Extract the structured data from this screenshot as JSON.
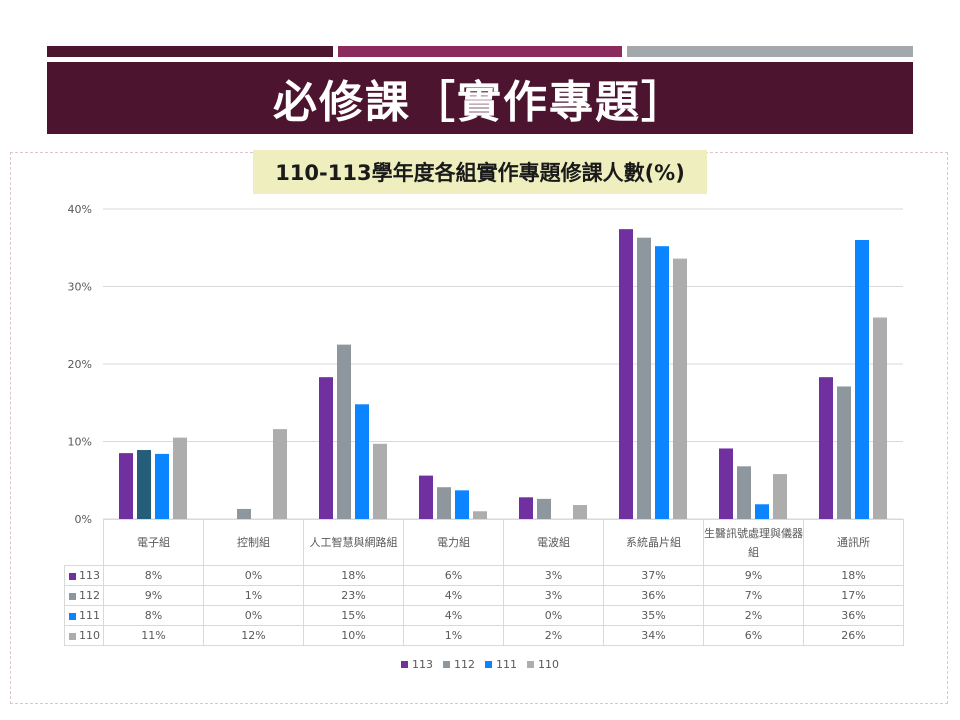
{
  "slide": {
    "title": "必修課［實作專題］",
    "accent_colors": [
      "#4d1430",
      "#8b2a5c",
      "#a3a8ad"
    ]
  },
  "chart_data": {
    "type": "bar",
    "title": "110-113學年度各組實作專題修課人數(%)",
    "categories": [
      "電子組",
      "控制組",
      "人工智慧與網路組",
      "電力組",
      "電波組",
      "系統晶片組",
      "生醫訊號處理與儀器組",
      "通訊所"
    ],
    "series": [
      {
        "name": "113",
        "color": "#7030a0",
        "values": [
          8.5,
          0,
          18.3,
          5.6,
          2.8,
          37.4,
          9.1,
          18.3
        ],
        "labels": [
          "8%",
          "0%",
          "18%",
          "6%",
          "3%",
          "37%",
          "9%",
          "18%"
        ]
      },
      {
        "name": "112",
        "color": "#8e979e",
        "values": [
          8.9,
          1.3,
          22.5,
          4.1,
          2.6,
          36.3,
          6.8,
          17.1
        ],
        "labels": [
          "9%",
          "1%",
          "23%",
          "4%",
          "3%",
          "36%",
          "7%",
          "17%"
        ]
      },
      {
        "name": "111",
        "color": "#0a84ff",
        "values": [
          8.4,
          0,
          14.8,
          3.7,
          0,
          35.2,
          1.9,
          36.0
        ],
        "labels": [
          "8%",
          "0%",
          "15%",
          "4%",
          "0%",
          "35%",
          "2%",
          "36%"
        ]
      },
      {
        "name": "110",
        "color": "#adadad",
        "values": [
          10.5,
          11.6,
          9.7,
          1.0,
          1.8,
          33.6,
          5.8,
          26.0
        ],
        "labels": [
          "11%",
          "12%",
          "10%",
          "1%",
          "2%",
          "34%",
          "6%",
          "26%"
        ]
      }
    ],
    "highlight": {
      "series": 1,
      "category": 0,
      "color": "#255e79"
    },
    "y_ticks": [
      "0%",
      "10%",
      "20%",
      "30%",
      "40%"
    ],
    "ylim": [
      0,
      40
    ],
    "grid": true,
    "legend_position": "bottom",
    "data_table": true
  }
}
